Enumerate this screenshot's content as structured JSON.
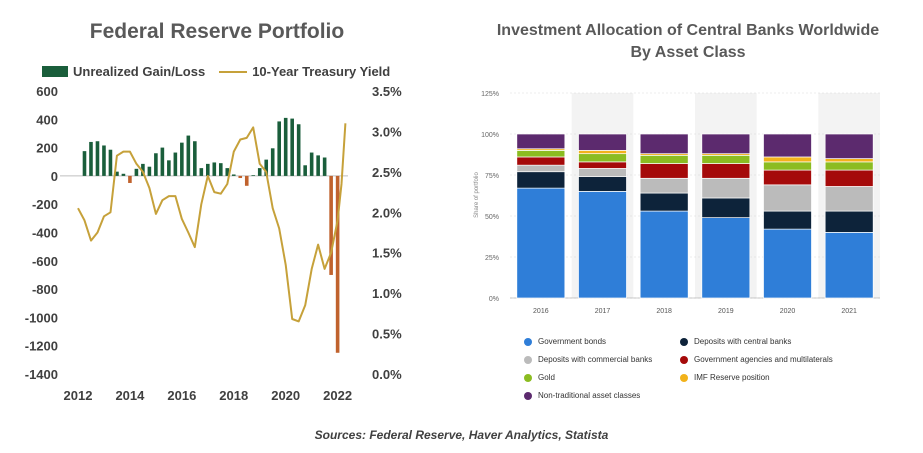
{
  "source": "Sources: Federal Reserve, Haver Analytics, Statista",
  "colors": {
    "gain": "#1a5e3b",
    "loss": "#c0622d",
    "yield": "#c6a13a"
  },
  "chart_data": [
    {
      "type": "bar",
      "title": "Federal Reserve Portfolio",
      "legend": [
        "Unrealized Gain/Loss",
        "10-Year Treasury Yield"
      ],
      "x_ticks": [
        "2012",
        "2014",
        "2016",
        "2018",
        "2020",
        "2022"
      ],
      "y_ticks_left": [
        "600",
        "400",
        "200",
        "0",
        "-200",
        "-400",
        "-600",
        "-800",
        "-1000",
        "-1200",
        "-1400"
      ],
      "y_ticks_right": [
        "3.5%",
        "3.0%",
        "2.5%",
        "2.0%",
        "1.5%",
        "1.0%",
        "0.5%",
        "0.0%"
      ],
      "ylim_left": [
        -1400,
        600
      ],
      "ylim_right": [
        0,
        3.5
      ],
      "xlim": [
        2012,
        2022.4
      ],
      "series": [
        {
          "name": "Unrealized Gain/Loss",
          "kind": "bar",
          "x": [
            2012.25,
            2012.5,
            2012.75,
            2013.0,
            2013.25,
            2013.5,
            2013.75,
            2014.0,
            2014.25,
            2014.5,
            2014.75,
            2015.0,
            2015.25,
            2015.5,
            2015.75,
            2016.0,
            2016.25,
            2016.5,
            2016.75,
            2017.0,
            2017.25,
            2017.5,
            2017.75,
            2018.0,
            2018.25,
            2018.5,
            2018.75,
            2019.0,
            2019.25,
            2019.5,
            2019.75,
            2020.0,
            2020.25,
            2020.5,
            2020.75,
            2021.0,
            2021.25,
            2021.5,
            2021.75,
            2022.0
          ],
          "values": [
            175,
            240,
            245,
            215,
            185,
            30,
            15,
            -50,
            50,
            85,
            65,
            160,
            200,
            110,
            165,
            235,
            285,
            245,
            55,
            85,
            95,
            90,
            55,
            10,
            -15,
            -70,
            5,
            55,
            115,
            195,
            385,
            410,
            405,
            365,
            75,
            165,
            145,
            130,
            -700,
            -1250
          ]
        },
        {
          "name": "10-Year Treasury Yield",
          "kind": "line",
          "x": [
            2012.0,
            2012.25,
            2012.5,
            2012.75,
            2013.0,
            2013.25,
            2013.5,
            2013.75,
            2014.0,
            2014.25,
            2014.5,
            2014.75,
            2015.0,
            2015.25,
            2015.5,
            2015.75,
            2016.0,
            2016.25,
            2016.5,
            2016.75,
            2017.0,
            2017.25,
            2017.5,
            2017.75,
            2018.0,
            2018.25,
            2018.5,
            2018.75,
            2019.0,
            2019.25,
            2019.5,
            2019.75,
            2020.0,
            2020.25,
            2020.5,
            2020.75,
            2021.0,
            2021.25,
            2021.5,
            2021.75,
            2022.0,
            2022.15,
            2022.3
          ],
          "values": [
            2.05,
            1.9,
            1.65,
            1.75,
            1.95,
            2.0,
            2.7,
            2.75,
            2.75,
            2.6,
            2.5,
            2.3,
            1.98,
            2.15,
            2.2,
            2.2,
            1.92,
            1.75,
            1.57,
            2.1,
            2.45,
            2.25,
            2.23,
            2.35,
            2.75,
            2.9,
            2.92,
            3.05,
            2.6,
            2.5,
            2.05,
            1.8,
            1.35,
            0.68,
            0.65,
            0.85,
            1.3,
            1.6,
            1.3,
            1.5,
            1.9,
            2.35,
            3.1
          ]
        }
      ]
    },
    {
      "type": "bar",
      "stacked": true,
      "title_lines": [
        "Investment Allocation of Central Banks Worldwide",
        "By Asset Class"
      ],
      "ylabel": "Share of portfolio",
      "y_ticks": [
        "125%",
        "100%",
        "75%",
        "50%",
        "25%",
        "0%"
      ],
      "ylim": [
        0,
        125
      ],
      "categories": [
        "2016",
        "2017",
        "2018",
        "2019",
        "2020",
        "2021"
      ],
      "series": [
        {
          "name": "Government bonds",
          "color": "#2f7ed8",
          "values": [
            67,
            65,
            53,
            49,
            42,
            40
          ]
        },
        {
          "name": "Deposits with central banks",
          "color": "#0d233a",
          "values": [
            10,
            9,
            11,
            12,
            11,
            13
          ]
        },
        {
          "name": "Deposits with commercial banks",
          "color": "#bbbbbb",
          "values": [
            4,
            5,
            9,
            12,
            16,
            15
          ]
        },
        {
          "name": "Government agencies and multilaterals",
          "color": "#a50a0a",
          "values": [
            5,
            4,
            9,
            9,
            9,
            10
          ]
        },
        {
          "name": "Gold",
          "color": "#8bbc21",
          "values": [
            4,
            5,
            5,
            5,
            5,
            5
          ]
        },
        {
          "name": "IMF Reserve position",
          "color": "#f2b21a",
          "values": [
            1,
            2,
            1,
            1,
            3,
            2
          ]
        },
        {
          "name": "Non-traditional asset classes",
          "color": "#5c2a6e",
          "values": [
            9,
            10,
            12,
            12,
            14,
            15
          ]
        }
      ]
    }
  ]
}
